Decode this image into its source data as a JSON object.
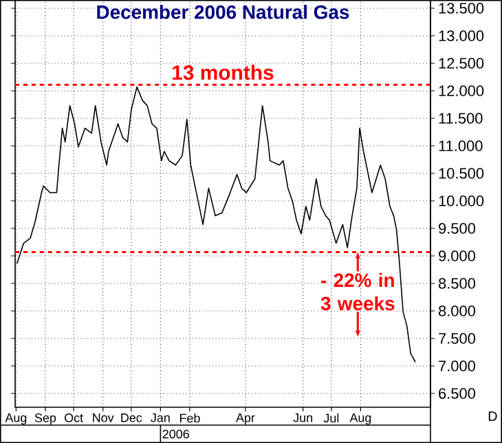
{
  "chart_data": {
    "type": "line",
    "title": "December 2006 Natural Gas",
    "xlabel": "2006",
    "x": [
      "2005-08-02",
      "2005-08-09",
      "2005-08-16",
      "2005-08-21",
      "2005-08-28",
      "2005-08-30",
      "2005-09-06",
      "2005-09-13",
      "2005-09-15",
      "2005-09-19",
      "2005-09-22",
      "2005-09-27",
      "2005-10-02",
      "2005-10-06",
      "2005-10-13",
      "2005-10-20",
      "2005-10-24",
      "2005-10-30",
      "2005-11-05",
      "2005-11-07",
      "2005-11-12",
      "2005-11-17",
      "2005-11-22",
      "2005-11-27",
      "2005-12-01",
      "2005-12-07",
      "2005-12-13",
      "2005-12-18",
      "2005-12-23",
      "2005-12-28",
      "2006-01-02",
      "2006-01-05",
      "2006-01-10",
      "2006-01-17",
      "2006-01-24",
      "2006-01-29",
      "2006-02-02",
      "2006-02-07",
      "2006-02-12",
      "2006-02-15",
      "2006-02-21",
      "2006-02-28",
      "2006-03-07",
      "2006-03-14",
      "2006-03-23",
      "2006-03-28",
      "2006-04-02",
      "2006-04-11",
      "2006-04-16",
      "2006-04-19",
      "2006-04-25",
      "2006-04-27",
      "2006-05-07",
      "2006-05-11",
      "2006-05-16",
      "2006-05-21",
      "2006-05-25",
      "2006-05-30",
      "2006-06-04",
      "2006-06-08",
      "2006-06-15",
      "2006-06-20",
      "2006-06-25",
      "2006-06-29",
      "2006-07-06",
      "2006-07-13",
      "2006-07-18",
      "2006-07-23",
      "2006-07-28",
      "2006-07-31",
      "2006-08-04",
      "2006-08-08",
      "2006-08-13",
      "2006-08-19",
      "2006-08-22",
      "2006-08-27",
      "2006-09-01",
      "2006-09-05",
      "2006-09-08",
      "2006-09-11",
      "2006-09-15",
      "2006-09-19",
      "2006-09-23",
      "2006-09-28"
    ],
    "series": [
      {
        "color": "#000000",
        "values": [
          8.86,
          9.23,
          9.32,
          9.61,
          10.15,
          10.27,
          10.15,
          10.15,
          10.57,
          11.32,
          11.07,
          11.73,
          11.4,
          10.98,
          11.32,
          11.23,
          11.73,
          11.07,
          10.65,
          10.9,
          11.15,
          11.4,
          11.15,
          11.07,
          11.65,
          12.07,
          11.82,
          11.73,
          11.4,
          11.32,
          10.73,
          10.9,
          10.73,
          10.65,
          10.82,
          11.48,
          10.65,
          10.23,
          9.82,
          9.57,
          10.23,
          9.73,
          9.78,
          10.07,
          10.48,
          10.23,
          10.15,
          10.4,
          11.23,
          11.73,
          11.07,
          10.73,
          10.65,
          10.73,
          10.23,
          9.98,
          9.65,
          9.4,
          9.9,
          9.65,
          10.4,
          9.9,
          9.73,
          9.65,
          9.23,
          9.57,
          9.15,
          9.73,
          10.23,
          11.32,
          10.9,
          10.57,
          10.15,
          10.48,
          10.65,
          10.4,
          9.9,
          9.73,
          9.48,
          8.9,
          7.98,
          7.73,
          7.23,
          7.07
        ]
      }
    ],
    "xlim": [
      "2005-07-31",
      "2006-10-14"
    ],
    "xticks": [
      {
        "value": "2005-08-01",
        "label": "Aug"
      },
      {
        "value": "2005-09-01",
        "label": "Sep"
      },
      {
        "value": "2005-10-01",
        "label": "Oct"
      },
      {
        "value": "2005-11-01",
        "label": "Nov"
      },
      {
        "value": "2005-12-01",
        "label": "Dec"
      },
      {
        "value": "2006-01-01",
        "label": "Jan"
      },
      {
        "value": "2006-02-01",
        "label": "Feb"
      },
      {
        "value": "2006-04-01",
        "label": "Apr"
      },
      {
        "value": "2006-06-01",
        "label": "Jun"
      },
      {
        "value": "2006-07-01",
        "label": "Jul"
      },
      {
        "value": "2006-08-01",
        "label": "Aug"
      }
    ],
    "ylim": [
      6.25,
      13.65
    ],
    "yticks": [
      {
        "value": 6.5,
        "label": "6.500"
      },
      {
        "value": 7,
        "label": "7.000"
      },
      {
        "value": 7.5,
        "label": "7.500"
      },
      {
        "value": 8,
        "label": "8.000"
      },
      {
        "value": 8.5,
        "label": "8.500"
      },
      {
        "value": 9,
        "label": "9.000"
      },
      {
        "value": 9.5,
        "label": "9.500"
      },
      {
        "value": 10,
        "label": "10.000"
      },
      {
        "value": 10.5,
        "label": "10.500"
      },
      {
        "value": 11,
        "label": "11.000"
      },
      {
        "value": 11.5,
        "label": "11.500"
      },
      {
        "value": 12,
        "label": "12.000"
      },
      {
        "value": 12.5,
        "label": "12.500"
      },
      {
        "value": 13,
        "label": "13.000"
      },
      {
        "value": 13.5,
        "label": "13.500"
      }
    ],
    "grid": true,
    "marker": "none",
    "line_style": "solid",
    "ref_lines": [
      {
        "axis": "y",
        "value": 12.11,
        "label": "13 months",
        "color": "#ff0000",
        "line_style": "dashed"
      },
      {
        "axis": "y",
        "value": 9.07,
        "color": "#ff0000",
        "line_style": "dashed"
      }
    ],
    "annotations": [
      "- 22% in 3 weeks",
      "D"
    ]
  }
}
